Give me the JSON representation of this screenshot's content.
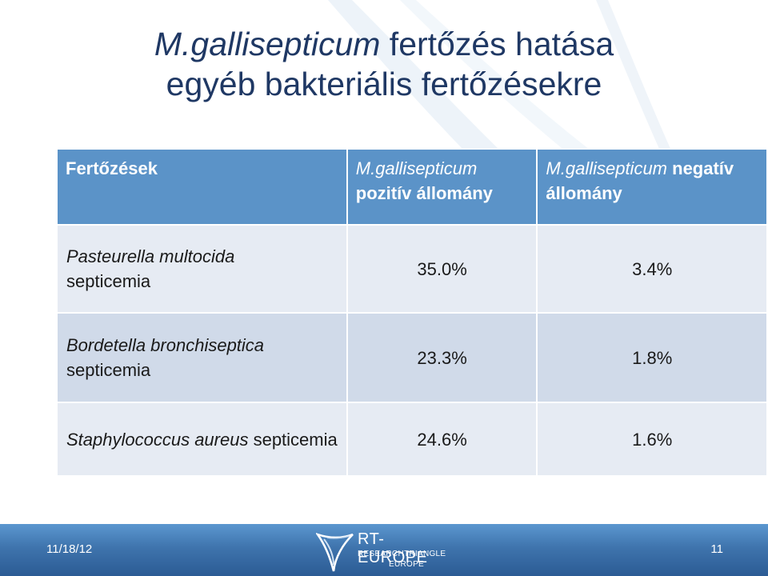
{
  "title": {
    "line1_italic": "M.gallisepticum",
    "line1_rest": " fertőzés hatása",
    "line2": "egyéb bakteriális fertőzésekre"
  },
  "table": {
    "headers": {
      "infection": "Fertőzések",
      "positive_italic": "M.gallisepticum",
      "positive_rest": "pozitív állomány",
      "negative_italic": "M.gallisepticum",
      "negative_rest": " negatív állomány"
    },
    "rows": [
      {
        "name_italic": "Pasteurella multocida",
        "name_rest": "septicemia",
        "positive": "35.0%",
        "negative": "3.4%"
      },
      {
        "name_italic": "Bordetella bronchiseptica",
        "name_rest": "septicemia",
        "positive": "23.3%",
        "negative": "1.8%"
      },
      {
        "name_italic": "Staphylococcus aureus",
        "name_rest": " septicemia",
        "positive": "24.6%",
        "negative": "1.6%"
      }
    ]
  },
  "footer": {
    "date": "11/18/12",
    "slide_number": "11",
    "logo_line1": "RT-EUROPE",
    "logo_line2": "RESEARCHTRIANGLE",
    "logo_line3": "EUROPE",
    "logo_icon": "rt-europe-logo-icon"
  },
  "colors": {
    "title": "#1f3864",
    "header_fill": "#5b93c8",
    "row_light": "#e6ebf3",
    "row_dark": "#d0dae9",
    "footer": "#3f74ad"
  }
}
